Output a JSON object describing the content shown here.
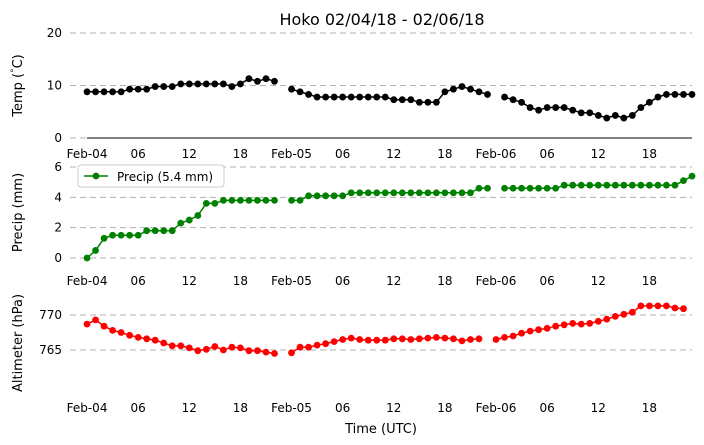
{
  "chart_data": {
    "type": "line",
    "title": "Hoko 02/04/18 - 02/06/18",
    "xlabel": "Time (UTC)",
    "x_tick_labels": [
      "Feb-04",
      "06",
      "12",
      "18",
      "Feb-05",
      "06",
      "12",
      "18",
      "Feb-06",
      "06",
      "12",
      "18"
    ],
    "x_tick_hours": [
      0,
      6,
      12,
      18,
      24,
      30,
      36,
      42,
      48,
      54,
      60,
      66
    ],
    "x_range_hours": [
      -2,
      71
    ],
    "x": [
      0,
      1,
      2,
      3,
      4,
      5,
      6,
      7,
      8,
      9,
      10,
      11,
      12,
      13,
      14,
      15,
      16,
      17,
      18,
      19,
      20,
      21,
      22,
      23,
      24,
      25,
      26,
      27,
      28,
      29,
      30,
      31,
      32,
      33,
      34,
      35,
      36,
      37,
      38,
      39,
      40,
      41,
      42,
      43,
      44,
      45,
      46,
      47,
      48,
      49,
      50,
      51,
      52,
      53,
      54,
      55,
      56,
      57,
      58,
      59,
      60,
      61,
      62,
      63,
      64,
      65,
      66,
      67,
      68,
      69,
      70,
      71
    ],
    "panels": [
      {
        "ylabel": "Temp ( C)",
        "ylabel_degree": "°",
        "ylim": [
          0,
          20
        ],
        "yticks": [
          "0",
          "10",
          "20"
        ],
        "grid": true,
        "color": "#000000",
        "legend": null,
        "values": [
          8.8,
          8.8,
          8.8,
          8.8,
          8.8,
          9.3,
          9.3,
          9.3,
          9.8,
          9.8,
          9.8,
          10.3,
          10.3,
          10.3,
          10.3,
          10.3,
          10.3,
          9.8,
          10.3,
          11.3,
          10.8,
          11.3,
          10.8,
          null,
          9.3,
          8.8,
          8.3,
          7.8,
          7.8,
          7.8,
          7.8,
          7.8,
          7.8,
          7.8,
          7.8,
          7.8,
          7.3,
          7.3,
          7.3,
          6.8,
          6.8,
          6.8,
          8.8,
          9.3,
          9.8,
          9.3,
          8.8,
          8.3,
          null,
          7.8,
          7.3,
          6.8,
          5.8,
          5.3,
          5.8,
          5.8,
          5.8,
          5.3,
          4.8,
          4.8,
          4.3,
          3.8,
          4.3,
          3.8,
          4.3,
          5.8,
          6.8,
          7.8,
          8.3,
          8.3,
          8.3,
          8.3
        ]
      },
      {
        "ylabel": "Precip (mm)",
        "ylim": [
          0,
          6
        ],
        "yticks": [
          "0",
          "2",
          "4",
          "6"
        ],
        "grid": true,
        "color": "#008000",
        "legend": "Precip (5.4 mm)",
        "legend_position": "top-left",
        "values": [
          0.0,
          0.5,
          1.3,
          1.5,
          1.5,
          1.5,
          1.5,
          1.8,
          1.8,
          1.8,
          1.8,
          2.3,
          2.5,
          2.8,
          3.6,
          3.6,
          3.8,
          3.8,
          3.8,
          3.8,
          3.8,
          3.8,
          3.8,
          null,
          3.8,
          3.8,
          4.1,
          4.1,
          4.1,
          4.1,
          4.1,
          4.3,
          4.3,
          4.3,
          4.3,
          4.3,
          4.3,
          4.3,
          4.3,
          4.3,
          4.3,
          4.3,
          4.3,
          4.3,
          4.3,
          4.3,
          4.6,
          4.6,
          null,
          4.6,
          4.6,
          4.6,
          4.6,
          4.6,
          4.6,
          4.6,
          4.8,
          4.8,
          4.8,
          4.8,
          4.8,
          4.8,
          4.8,
          4.8,
          4.8,
          4.8,
          4.8,
          4.8,
          4.8,
          4.8,
          5.1,
          5.4
        ]
      },
      {
        "ylabel": "Altimeter (hPa)",
        "ylim": [
          760,
          772
        ],
        "yticks": [
          "765",
          "770"
        ],
        "grid": true,
        "color": "#ff0000",
        "legend": null,
        "values": [
          768.7,
          769.3,
          768.4,
          767.8,
          767.5,
          767.1,
          766.8,
          766.6,
          766.4,
          766.0,
          765.6,
          765.6,
          765.3,
          764.9,
          765.1,
          765.5,
          765.0,
          765.4,
          765.3,
          764.9,
          764.9,
          764.7,
          764.5,
          null,
          764.6,
          765.4,
          765.4,
          765.7,
          765.9,
          766.2,
          766.5,
          766.7,
          766.5,
          766.4,
          766.4,
          766.4,
          766.6,
          766.6,
          766.5,
          766.6,
          766.7,
          766.8,
          766.7,
          766.6,
          766.3,
          766.5,
          766.6,
          null,
          766.5,
          766.8,
          767.0,
          767.4,
          767.7,
          767.9,
          768.1,
          768.4,
          768.6,
          768.8,
          768.7,
          768.8,
          769.1,
          769.4,
          769.8,
          770.1,
          770.4,
          771.3,
          771.3,
          771.3,
          771.3,
          771.0,
          770.9,
          null
        ]
      }
    ]
  }
}
